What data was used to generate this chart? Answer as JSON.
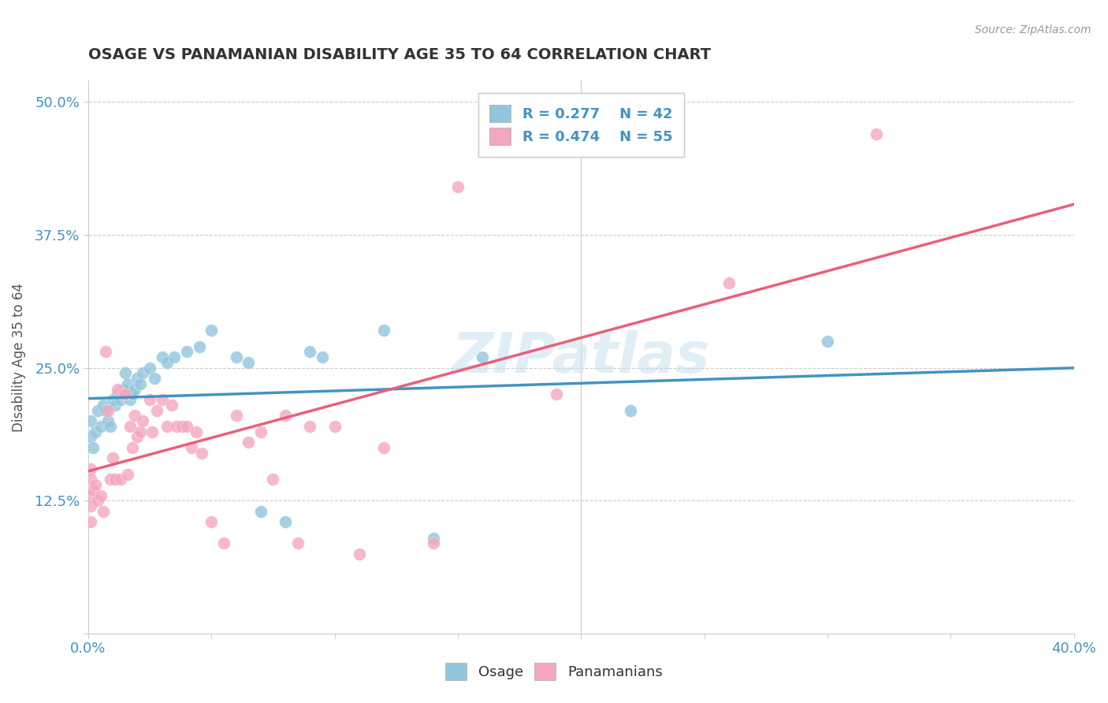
{
  "title": "OSAGE VS PANAMANIAN DISABILITY AGE 35 TO 64 CORRELATION CHART",
  "source_text": "Source: ZipAtlas.com",
  "ylabel": "Disability Age 35 to 64",
  "xlim": [
    0.0,
    0.4
  ],
  "ylim": [
    0.0,
    0.52
  ],
  "xticks": [
    0.0,
    0.05,
    0.1,
    0.15,
    0.2,
    0.25,
    0.3,
    0.35,
    0.4
  ],
  "yticks": [
    0.0,
    0.125,
    0.25,
    0.375,
    0.5
  ],
  "osage_R": 0.277,
  "osage_N": 42,
  "panamanian_R": 0.474,
  "panamanian_N": 55,
  "blue_dot_color": "#92c5de",
  "pink_dot_color": "#f4a6c0",
  "blue_line_color": "#4393c3",
  "pink_line_color": "#e8607a",
  "legend_text_color": "#4393c3",
  "watermark": "ZIPatlas",
  "background_color": "#ffffff",
  "grid_color": "#cccccc",
  "title_color": "#333333",
  "ylabel_color": "#555555",
  "tick_color": "#4393c3",
  "osage_x": [
    0.001,
    0.001,
    0.002,
    0.003,
    0.004,
    0.005,
    0.006,
    0.007,
    0.008,
    0.009,
    0.01,
    0.011,
    0.012,
    0.013,
    0.014,
    0.015,
    0.016,
    0.017,
    0.018,
    0.019,
    0.02,
    0.021,
    0.022,
    0.025,
    0.027,
    0.03,
    0.032,
    0.035,
    0.04,
    0.045,
    0.05,
    0.06,
    0.065,
    0.07,
    0.08,
    0.09,
    0.095,
    0.12,
    0.14,
    0.16,
    0.22,
    0.3
  ],
  "osage_y": [
    0.2,
    0.185,
    0.175,
    0.19,
    0.21,
    0.195,
    0.215,
    0.21,
    0.2,
    0.195,
    0.22,
    0.215,
    0.225,
    0.22,
    0.23,
    0.245,
    0.235,
    0.22,
    0.225,
    0.23,
    0.24,
    0.235,
    0.245,
    0.25,
    0.24,
    0.26,
    0.255,
    0.26,
    0.265,
    0.27,
    0.285,
    0.26,
    0.255,
    0.115,
    0.105,
    0.265,
    0.26,
    0.285,
    0.09,
    0.26,
    0.21,
    0.275
  ],
  "panamanian_x": [
    0.001,
    0.001,
    0.001,
    0.001,
    0.001,
    0.002,
    0.003,
    0.004,
    0.005,
    0.006,
    0.007,
    0.008,
    0.009,
    0.01,
    0.011,
    0.012,
    0.013,
    0.014,
    0.015,
    0.016,
    0.017,
    0.018,
    0.019,
    0.02,
    0.021,
    0.022,
    0.025,
    0.026,
    0.028,
    0.03,
    0.032,
    0.034,
    0.036,
    0.038,
    0.04,
    0.042,
    0.044,
    0.046,
    0.05,
    0.055,
    0.06,
    0.065,
    0.07,
    0.075,
    0.08,
    0.085,
    0.09,
    0.1,
    0.11,
    0.12,
    0.14,
    0.15,
    0.19,
    0.26,
    0.32
  ],
  "panamanian_y": [
    0.155,
    0.145,
    0.13,
    0.12,
    0.105,
    0.135,
    0.14,
    0.125,
    0.13,
    0.115,
    0.265,
    0.21,
    0.145,
    0.165,
    0.145,
    0.23,
    0.145,
    0.225,
    0.225,
    0.15,
    0.195,
    0.175,
    0.205,
    0.185,
    0.19,
    0.2,
    0.22,
    0.19,
    0.21,
    0.22,
    0.195,
    0.215,
    0.195,
    0.195,
    0.195,
    0.175,
    0.19,
    0.17,
    0.105,
    0.085,
    0.205,
    0.18,
    0.19,
    0.145,
    0.205,
    0.085,
    0.195,
    0.195,
    0.075,
    0.175,
    0.085,
    0.42,
    0.225,
    0.33,
    0.47
  ]
}
